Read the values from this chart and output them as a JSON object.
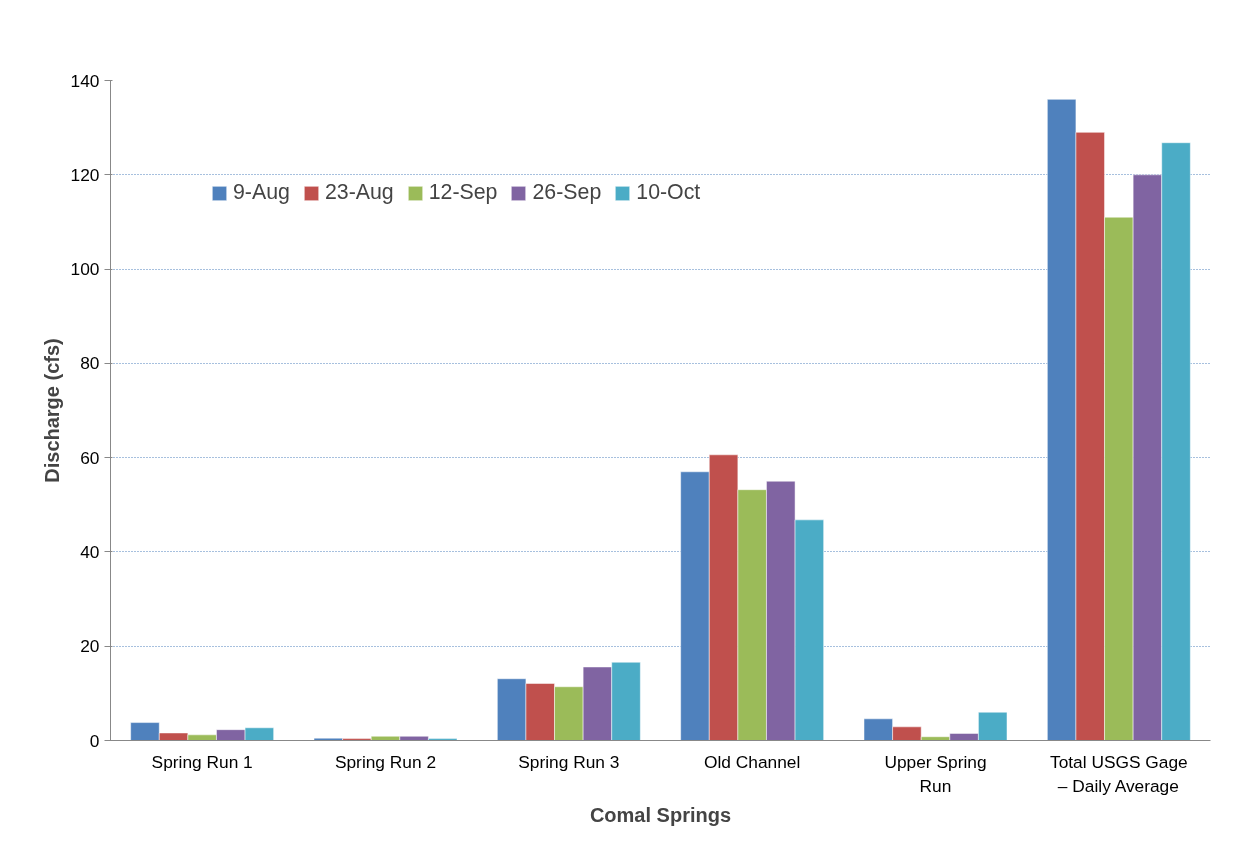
{
  "chart_data": {
    "type": "bar",
    "xlabel": "Comal Springs",
    "ylabel": "Discharge (cfs)",
    "categories": [
      "Spring Run 1",
      "Spring Run 2",
      "Spring Run 3",
      "Old Channel",
      "Upper Spring Run",
      "Total USGS Gage – Daily Average"
    ],
    "series": [
      {
        "name": "9-Aug",
        "color": "#4f81bd",
        "values": [
          3.8,
          0.5,
          13.1,
          57,
          4.6,
          136
        ]
      },
      {
        "name": "23-Aug",
        "color": "#c0504d",
        "values": [
          1.6,
          0.4,
          12.1,
          60.6,
          2.9,
          129
        ]
      },
      {
        "name": "12-Sep",
        "color": "#9bbb59",
        "values": [
          1.2,
          0.9,
          11.4,
          53.2,
          0.8,
          111
        ]
      },
      {
        "name": "26-Sep",
        "color": "#8064a2",
        "values": [
          2.3,
          0.9,
          15.6,
          55,
          1.5,
          120
        ]
      },
      {
        "name": "10-Oct",
        "color": "#4bacc6",
        "values": [
          2.7,
          0.4,
          16.6,
          46.8,
          6.0,
          126.8
        ]
      }
    ],
    "ylim": [
      0,
      140
    ],
    "yticks": [
      0,
      20,
      40,
      60,
      80,
      100,
      120,
      140
    ],
    "grid": "y",
    "legend": "top left"
  }
}
